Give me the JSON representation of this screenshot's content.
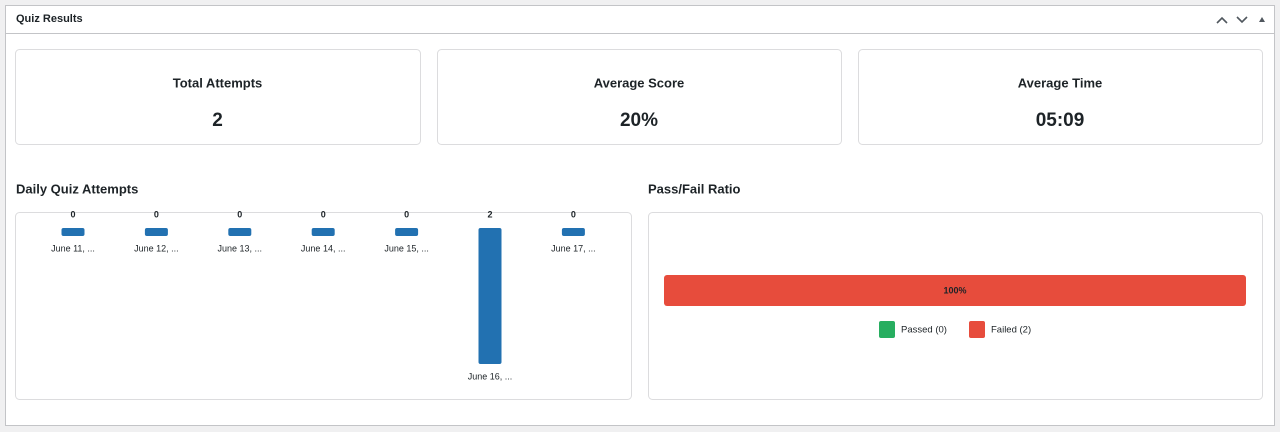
{
  "header": {
    "title": "Quiz Results"
  },
  "stats": [
    {
      "label": "Total Attempts",
      "value": "2"
    },
    {
      "label": "Average Score",
      "value": "20%"
    },
    {
      "label": "Average Time",
      "value": "05:09"
    }
  ],
  "daily_chart": {
    "type": "bar",
    "title": "Daily Quiz Attempts",
    "categories": [
      "June 11, ...",
      "June 12, ...",
      "June 13, ...",
      "June 14, ...",
      "June 15, ...",
      "June 16, ...",
      "June 17, ..."
    ],
    "values": [
      0,
      0,
      0,
      0,
      0,
      2,
      0
    ],
    "color": "#2271b1"
  },
  "pass_fail_chart": {
    "type": "stacked-bar",
    "title": "Pass/Fail Ratio",
    "series": [
      {
        "name": "Passed (0)",
        "color": "#27ae60",
        "values": [
          0
        ]
      },
      {
        "name": "Failed (2)",
        "color": "#e74c3c",
        "values": [
          100
        ],
        "value_labels": [
          "100%"
        ]
      }
    ]
  }
}
